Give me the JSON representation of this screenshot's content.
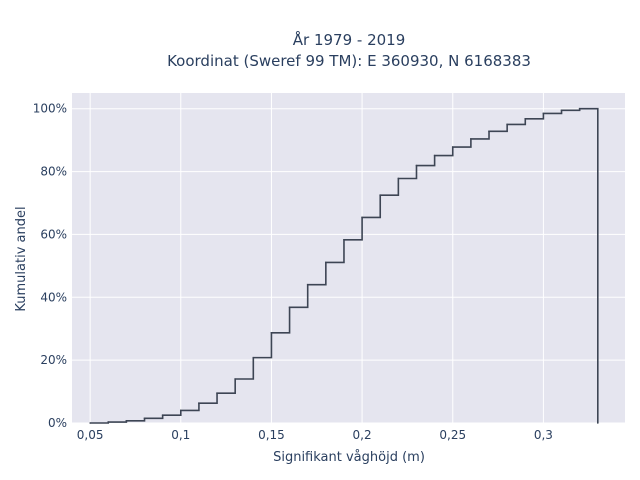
{
  "chart_data": {
    "type": "line",
    "subtype": "step-ecdf",
    "title_line1": "År 1979 - 2019",
    "title_line2": "Koordinat (Sweref 99 TM): E 360930, N 6168383",
    "xlabel": "Signifikant våghöjd (m)",
    "ylabel": "Kumulativ andel",
    "xlim": [
      0.04,
      0.345
    ],
    "ylim": [
      0,
      1.05
    ],
    "xticks": [
      0.05,
      0.1,
      0.15,
      0.2,
      0.25,
      0.3
    ],
    "xtick_labels": [
      "0,05",
      "0,1",
      "0,15",
      "0,2",
      "0,25",
      "0,3"
    ],
    "yticks": [
      0,
      0.2,
      0.4,
      0.6,
      0.8,
      1.0
    ],
    "ytick_labels": [
      "0%",
      "20%",
      "40%",
      "60%",
      "80%",
      "100%"
    ],
    "grid": true,
    "background_color": "#e5e5ef",
    "line_color": "#3d4554",
    "x": [
      0.05,
      0.06,
      0.07,
      0.08,
      0.09,
      0.1,
      0.11,
      0.12,
      0.13,
      0.14,
      0.15,
      0.16,
      0.17,
      0.18,
      0.19,
      0.2,
      0.21,
      0.22,
      0.23,
      0.24,
      0.25,
      0.26,
      0.27,
      0.28,
      0.29,
      0.3,
      0.31,
      0.32,
      0.33
    ],
    "y": [
      0.0,
      0.003,
      0.007,
      0.015,
      0.025,
      0.04,
      0.063,
      0.095,
      0.14,
      0.208,
      0.287,
      0.368,
      0.44,
      0.511,
      0.583,
      0.654,
      0.725,
      0.778,
      0.819,
      0.851,
      0.878,
      0.904,
      0.928,
      0.95,
      0.968,
      0.985,
      0.995,
      1.0,
      0.0
    ]
  }
}
